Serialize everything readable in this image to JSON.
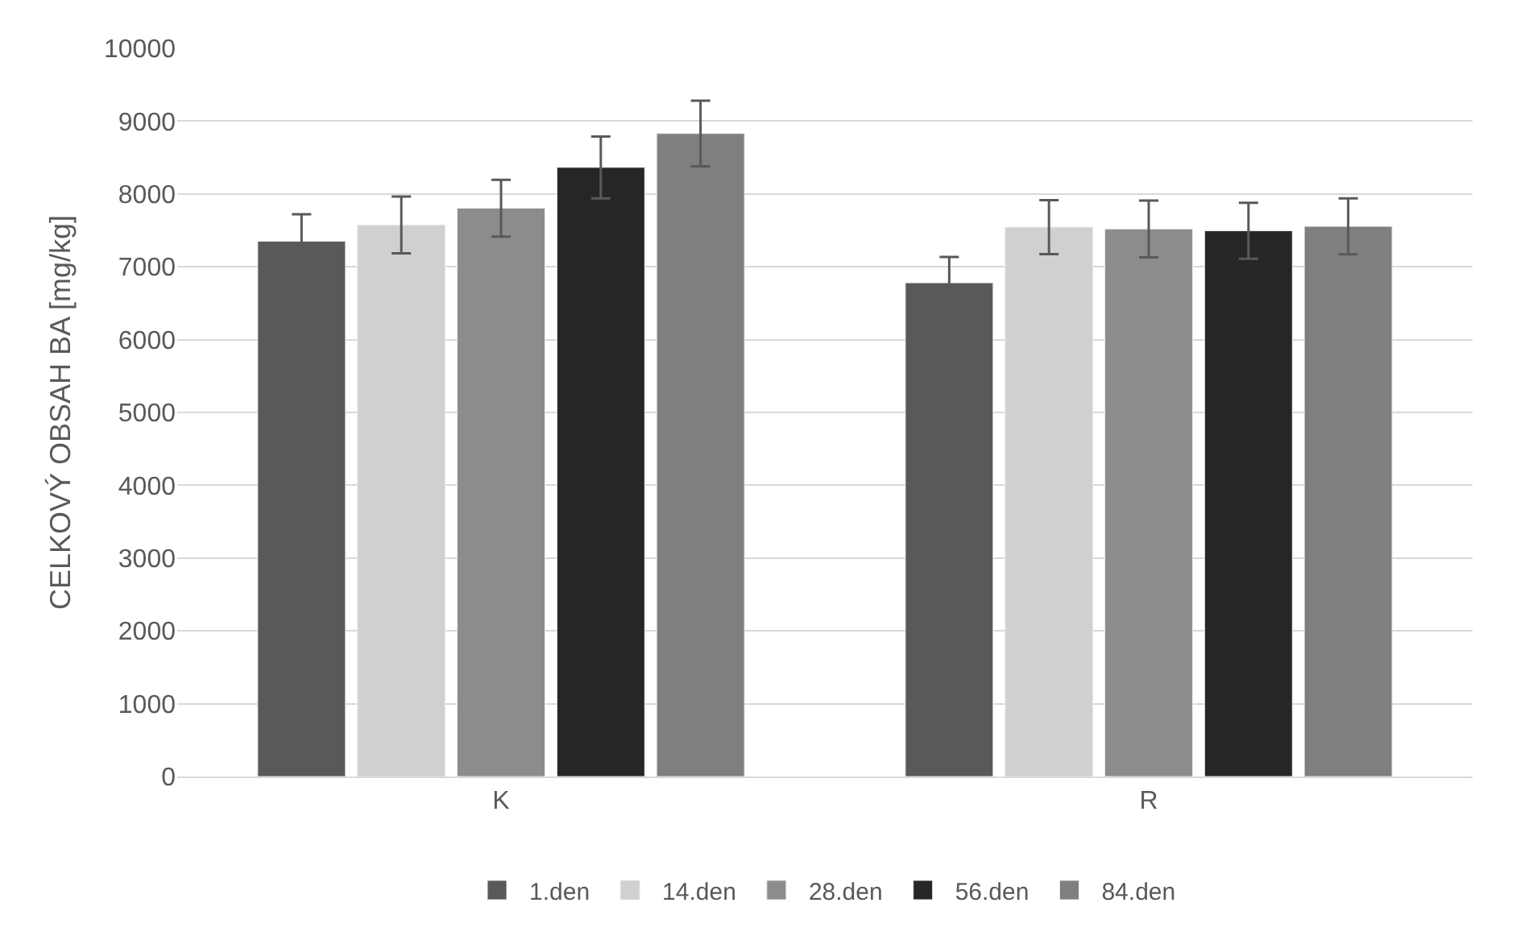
{
  "chart_data": {
    "type": "bar",
    "ylabel": "CELKOVÝ OBSAH BA [mg/kg]",
    "categories": [
      "K",
      "R"
    ],
    "series": [
      {
        "name": "1.den",
        "color": "#595959",
        "values": [
          7350,
          6780
        ],
        "errors": [
          370,
          355
        ]
      },
      {
        "name": "14.den",
        "color": "#d0d0d0",
        "values": [
          7575,
          7545
        ],
        "errors": [
          390,
          370
        ]
      },
      {
        "name": "28.den",
        "color": "#8c8c8c",
        "values": [
          7805,
          7520
        ],
        "errors": [
          390,
          390
        ]
      },
      {
        "name": "56.den",
        "color": "#262626",
        "values": [
          8365,
          7495
        ],
        "errors": [
          425,
          385
        ]
      },
      {
        "name": "84.den",
        "color": "#7f7f7f",
        "values": [
          8830,
          7555
        ],
        "errors": [
          450,
          385
        ]
      }
    ],
    "ylim": [
      0,
      10000
    ],
    "yticks": [
      0,
      1000,
      2000,
      3000,
      4000,
      5000,
      6000,
      7000,
      8000,
      9000,
      10000
    ],
    "grid": "y",
    "legend": "bottom"
  }
}
